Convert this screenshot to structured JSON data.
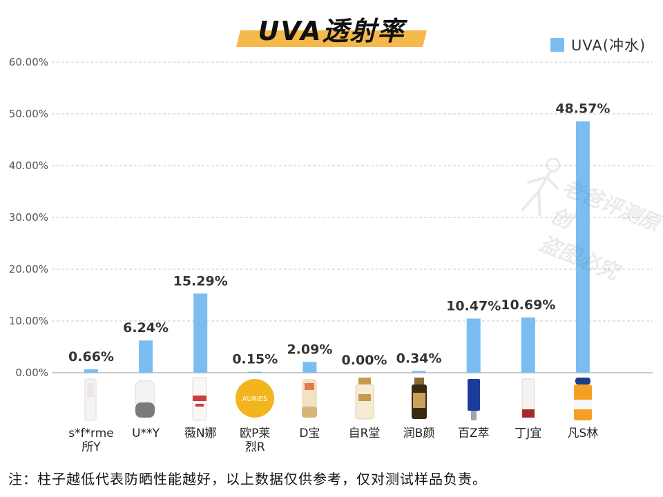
{
  "title": "UVA透射率",
  "legend": {
    "label": "UVA(冲水)",
    "color": "#7bbdf0"
  },
  "colors": {
    "bar": "#7bbdf0",
    "title_highlight": "#f5b84a"
  },
  "chart_data": {
    "type": "bar",
    "title": "UVA透射率",
    "xlabel": "",
    "ylabel": "",
    "ylim": [
      0,
      60
    ],
    "yticks": [
      "0.00%",
      "10.00%",
      "20.00%",
      "30.00%",
      "40.00%",
      "50.00%",
      "60.00%"
    ],
    "grid": true,
    "legend_position": "top-right",
    "categories": [
      "s*f*rme所Y",
      "U**Y",
      "薇N娜",
      "欧P莱烈R",
      "D宝",
      "自R堂",
      "润B颜",
      "百Z萃",
      "丁J宜",
      "凡S林"
    ],
    "series": [
      {
        "name": "UVA(冲水)",
        "values": [
          0.66,
          6.24,
          15.29,
          0.15,
          2.09,
          0.0,
          0.34,
          10.47,
          10.69,
          48.57
        ],
        "labels": [
          "0.66%",
          "6.24%",
          "15.29%",
          "0.15%",
          "2.09%",
          "0.00%",
          "0.34%",
          "10.47%",
          "10.69%",
          "48.57%"
        ]
      }
    ]
  },
  "category_lines": [
    [
      "s*f*rme",
      "所Y"
    ],
    [
      "U**Y"
    ],
    [
      "薇N娜"
    ],
    [
      "欧P莱",
      "烈R"
    ],
    [
      "D宝"
    ],
    [
      "自R堂"
    ],
    [
      "润B颜"
    ],
    [
      "百Z萃"
    ],
    [
      "丁J宜"
    ],
    [
      "凡S林"
    ]
  ],
  "product_icons": [
    "tube-white",
    "bottle-white-grey",
    "bottle-red-white",
    "jar-yellow",
    "tube-gold",
    "bottle-cream",
    "bottle-gold",
    "tube-blue",
    "tube-white-red",
    "bottle-orange"
  ],
  "watermark": [
    "老爸评测原创",
    "盗图必究"
  ],
  "footnote": "注：柱子越低代表防晒性能越好，以上数据仅供参考，仅对测试样品负责。"
}
